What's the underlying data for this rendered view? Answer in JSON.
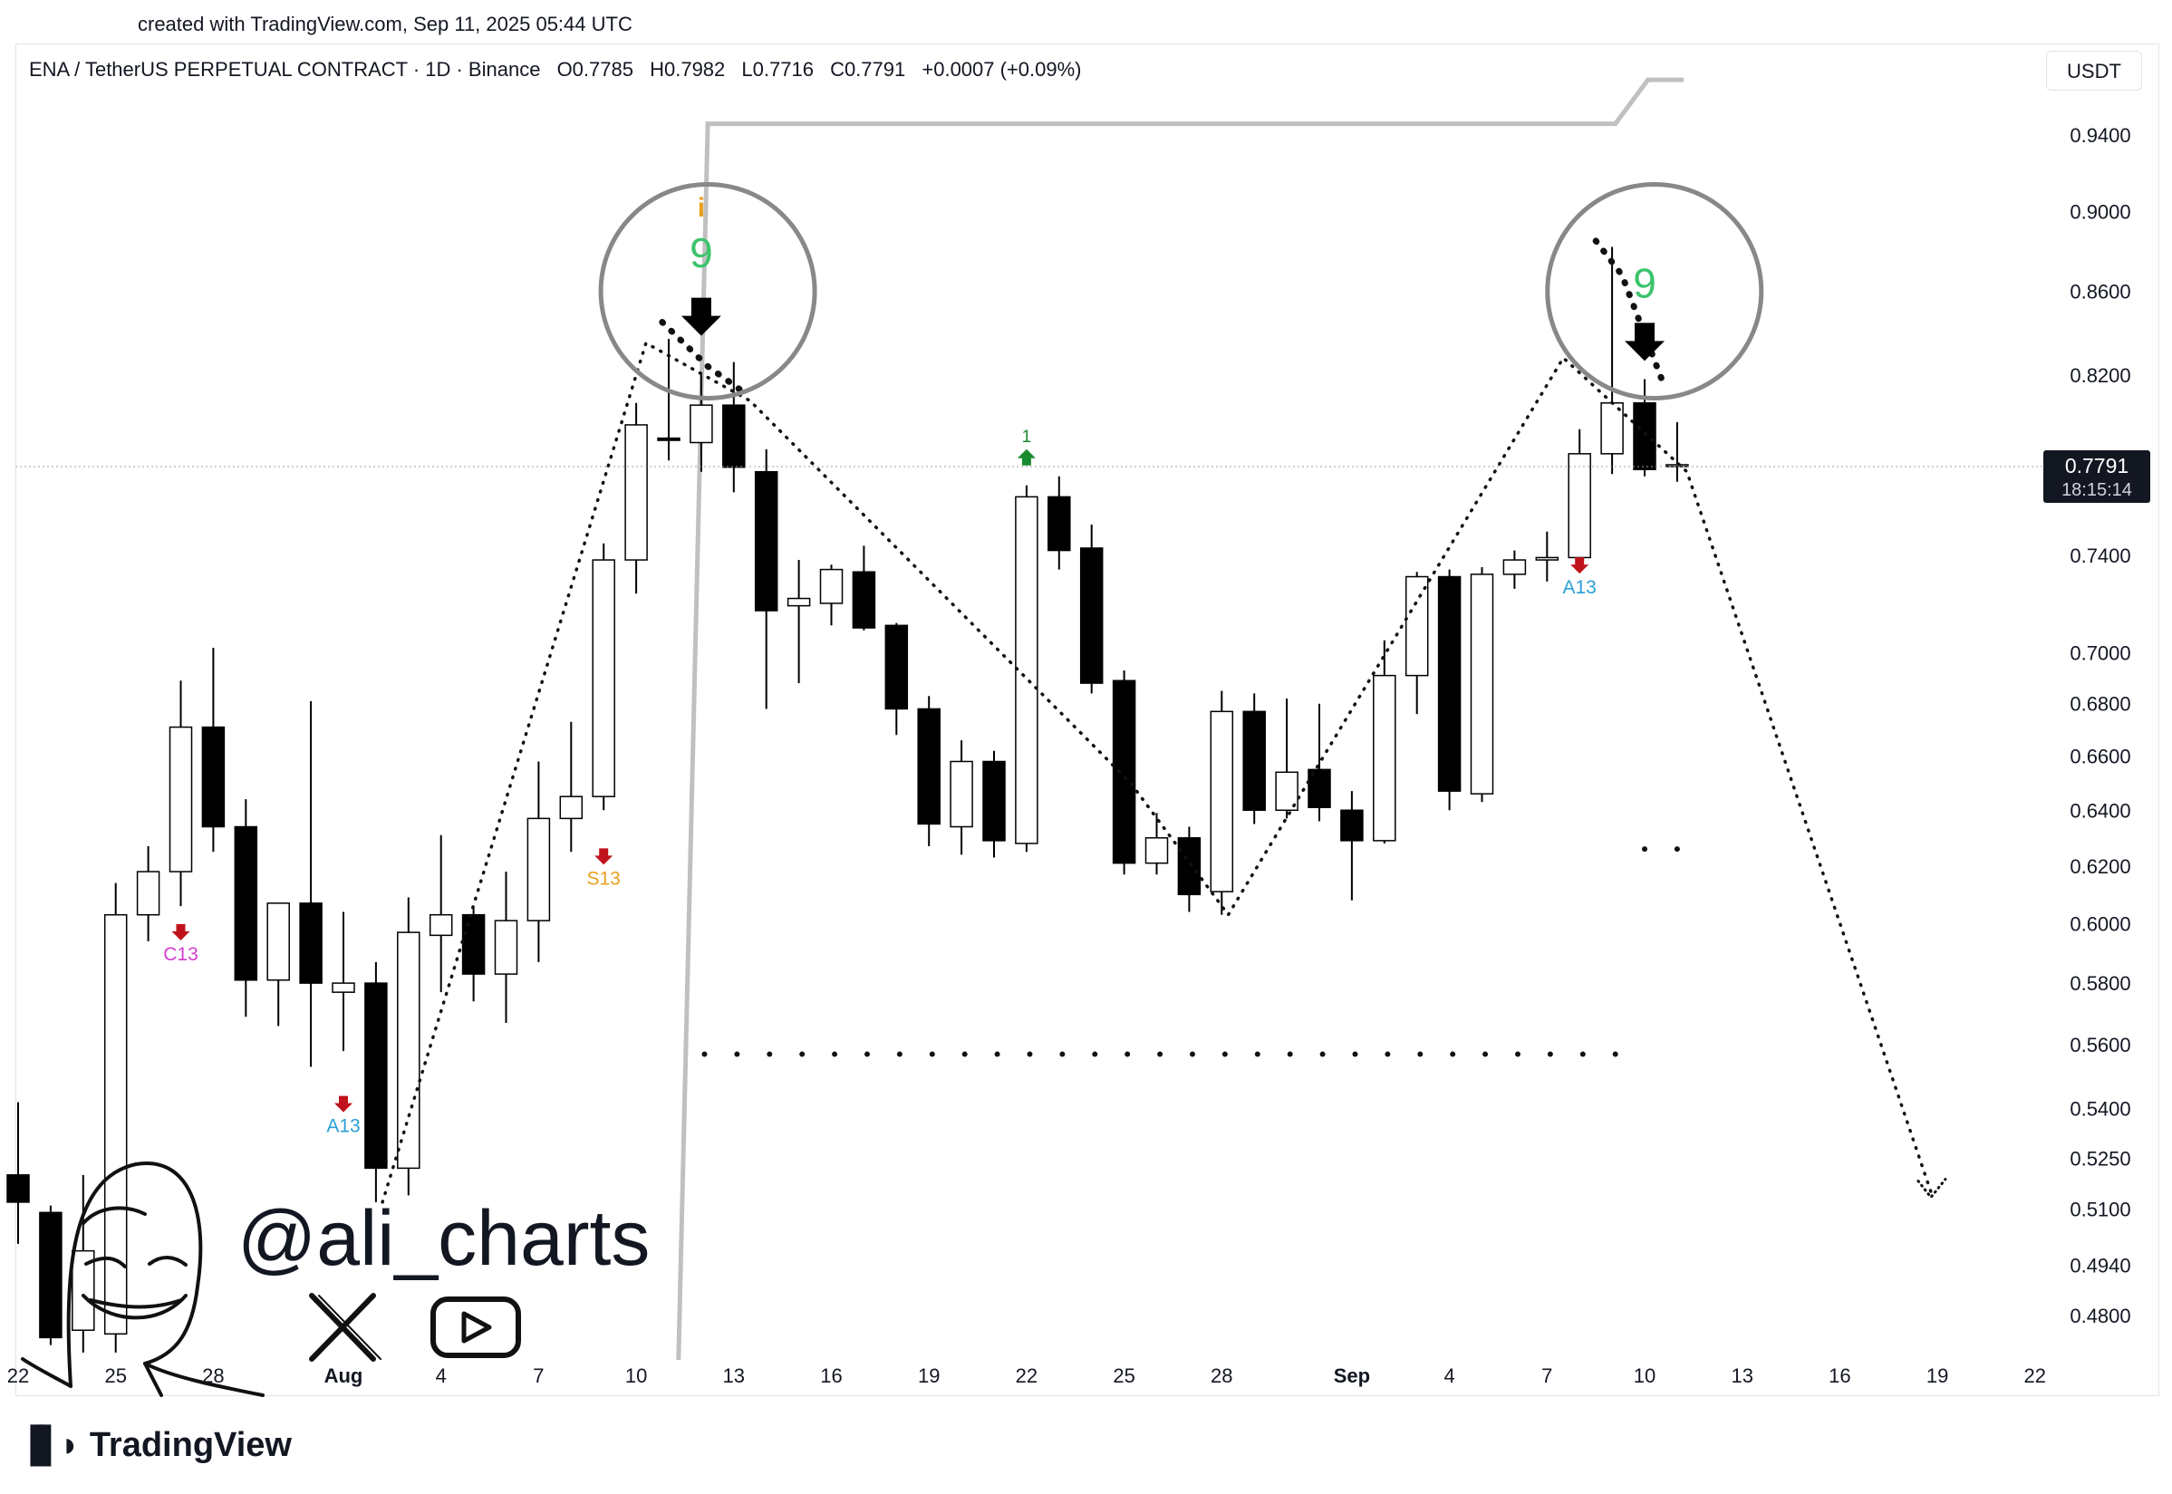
{
  "header": {
    "credit": "created with TradingView.com, Sep 11, 2025 05:44 UTC"
  },
  "legend": {
    "symbol": "ENA / TetherUS PERPETUAL CONTRACT · 1D · Binance",
    "open": "O0.7785",
    "high": "H0.7982",
    "low": "L0.7716",
    "close": "C0.7791",
    "change": "+0.0007 (+0.09%)"
  },
  "currency_label": "USDT",
  "price_tag": {
    "price": "0.7791",
    "countdown": "18:15:14",
    "value": 0.7791
  },
  "branding": {
    "handle": "@ali_charts",
    "footer": "TradingView"
  },
  "icons": {
    "x": "x-logo-icon",
    "youtube": "youtube-icon",
    "avatar": "avatar-sketch",
    "footer": "tradingview-logo-icon"
  },
  "colors": {
    "up_fill": "#ffffff",
    "down_fill": "#000000",
    "candle_border": "#000000",
    "td9": "#3cc36b",
    "td_arrow_down": "#c0121b",
    "td_arrow_up": "#1a8a2e",
    "a13": "#2a9fd6",
    "s13": "#e8a020",
    "c13": "#d13fd1",
    "projection_line": "#c0c0c0"
  },
  "chart_data": {
    "type": "candlestick",
    "title": "ENA / TetherUS PERPETUAL CONTRACT · 1D · Binance",
    "y_scale": "log",
    "ylim": [
      0.468,
      0.985
    ],
    "y_ticks": [
      "0.9400",
      "0.9000",
      "0.8600",
      "0.8200",
      "0.7400",
      "0.7000",
      "0.6800",
      "0.6600",
      "0.6400",
      "0.6200",
      "0.6000",
      "0.5800",
      "0.5600",
      "0.5400",
      "0.5250",
      "0.5100",
      "0.4940",
      "0.4800"
    ],
    "x_labels": [
      {
        "label": "22",
        "day": 0
      },
      {
        "label": "25",
        "day": 3
      },
      {
        "label": "28",
        "day": 6
      },
      {
        "label": "Aug",
        "day": 10
      },
      {
        "label": "4",
        "day": 13
      },
      {
        "label": "7",
        "day": 16
      },
      {
        "label": "10",
        "day": 19
      },
      {
        "label": "13",
        "day": 22
      },
      {
        "label": "16",
        "day": 25
      },
      {
        "label": "19",
        "day": 28
      },
      {
        "label": "22",
        "day": 31
      },
      {
        "label": "25",
        "day": 34
      },
      {
        "label": "28",
        "day": 37
      },
      {
        "label": "Sep",
        "day": 41
      },
      {
        "label": "4",
        "day": 44
      },
      {
        "label": "7",
        "day": 47
      },
      {
        "label": "10",
        "day": 50
      },
      {
        "label": "13",
        "day": 53
      },
      {
        "label": "16",
        "day": 56
      },
      {
        "label": "19",
        "day": 59
      },
      {
        "label": "22",
        "day": 62
      }
    ],
    "candles": [
      {
        "day": 0,
        "o": 0.52,
        "h": 0.542,
        "l": 0.5,
        "c": 0.512
      },
      {
        "day": 1,
        "o": 0.509,
        "h": 0.511,
        "l": 0.472,
        "c": 0.474
      },
      {
        "day": 2,
        "o": 0.476,
        "h": 0.52,
        "l": 0.47,
        "c": 0.498
      },
      {
        "day": 3,
        "o": 0.475,
        "h": 0.614,
        "l": 0.47,
        "c": 0.603
      },
      {
        "day": 4,
        "o": 0.603,
        "h": 0.627,
        "l": 0.594,
        "c": 0.618
      },
      {
        "day": 5,
        "o": 0.618,
        "h": 0.689,
        "l": 0.606,
        "c": 0.671
      },
      {
        "day": 6,
        "o": 0.671,
        "h": 0.702,
        "l": 0.625,
        "c": 0.634
      },
      {
        "day": 7,
        "o": 0.634,
        "h": 0.644,
        "l": 0.569,
        "c": 0.581
      },
      {
        "day": 8,
        "o": 0.581,
        "h": 0.606,
        "l": 0.566,
        "c": 0.607
      },
      {
        "day": 9,
        "o": 0.607,
        "h": 0.681,
        "l": 0.553,
        "c": 0.58
      },
      {
        "day": 10,
        "o": 0.577,
        "h": 0.604,
        "l": 0.558,
        "c": 0.58
      },
      {
        "day": 11,
        "o": 0.58,
        "h": 0.587,
        "l": 0.512,
        "c": 0.522
      },
      {
        "day": 12,
        "o": 0.522,
        "h": 0.609,
        "l": 0.514,
        "c": 0.597
      },
      {
        "day": 13,
        "o": 0.596,
        "h": 0.631,
        "l": 0.577,
        "c": 0.603
      },
      {
        "day": 14,
        "o": 0.603,
        "h": 0.606,
        "l": 0.574,
        "c": 0.583
      },
      {
        "day": 15,
        "o": 0.583,
        "h": 0.618,
        "l": 0.567,
        "c": 0.601
      },
      {
        "day": 16,
        "o": 0.601,
        "h": 0.658,
        "l": 0.587,
        "c": 0.637
      },
      {
        "day": 17,
        "o": 0.637,
        "h": 0.673,
        "l": 0.625,
        "c": 0.645
      },
      {
        "day": 18,
        "o": 0.645,
        "h": 0.745,
        "l": 0.64,
        "c": 0.738
      },
      {
        "day": 19,
        "o": 0.738,
        "h": 0.807,
        "l": 0.724,
        "c": 0.797
      },
      {
        "day": 20,
        "o": 0.791,
        "h": 0.837,
        "l": 0.781,
        "c": 0.79
      },
      {
        "day": 21,
        "o": 0.789,
        "h": 0.82,
        "l": 0.776,
        "c": 0.806
      },
      {
        "day": 22,
        "o": 0.806,
        "h": 0.826,
        "l": 0.767,
        "c": 0.778
      },
      {
        "day": 23,
        "o": 0.776,
        "h": 0.786,
        "l": 0.678,
        "c": 0.717
      },
      {
        "day": 24,
        "o": 0.719,
        "h": 0.738,
        "l": 0.688,
        "c": 0.722
      },
      {
        "day": 25,
        "o": 0.72,
        "h": 0.736,
        "l": 0.711,
        "c": 0.734
      },
      {
        "day": 26,
        "o": 0.733,
        "h": 0.744,
        "l": 0.709,
        "c": 0.71
      },
      {
        "day": 27,
        "o": 0.711,
        "h": 0.712,
        "l": 0.668,
        "c": 0.678
      },
      {
        "day": 28,
        "o": 0.678,
        "h": 0.683,
        "l": 0.627,
        "c": 0.635
      },
      {
        "day": 29,
        "o": 0.634,
        "h": 0.666,
        "l": 0.624,
        "c": 0.658
      },
      {
        "day": 30,
        "o": 0.658,
        "h": 0.662,
        "l": 0.623,
        "c": 0.629
      },
      {
        "day": 31,
        "o": 0.628,
        "h": 0.77,
        "l": 0.625,
        "c": 0.765
      },
      {
        "day": 32,
        "o": 0.765,
        "h": 0.774,
        "l": 0.734,
        "c": 0.742
      },
      {
        "day": 33,
        "o": 0.743,
        "h": 0.753,
        "l": 0.684,
        "c": 0.688
      },
      {
        "day": 34,
        "o": 0.689,
        "h": 0.693,
        "l": 0.617,
        "c": 0.621
      },
      {
        "day": 35,
        "o": 0.621,
        "h": 0.639,
        "l": 0.617,
        "c": 0.63
      },
      {
        "day": 36,
        "o": 0.63,
        "h": 0.634,
        "l": 0.604,
        "c": 0.61
      },
      {
        "day": 37,
        "o": 0.611,
        "h": 0.685,
        "l": 0.603,
        "c": 0.677
      },
      {
        "day": 38,
        "o": 0.677,
        "h": 0.684,
        "l": 0.635,
        "c": 0.64
      },
      {
        "day": 39,
        "o": 0.64,
        "h": 0.682,
        "l": 0.637,
        "c": 0.654
      },
      {
        "day": 40,
        "o": 0.655,
        "h": 0.68,
        "l": 0.636,
        "c": 0.641
      },
      {
        "day": 41,
        "o": 0.64,
        "h": 0.647,
        "l": 0.608,
        "c": 0.629
      },
      {
        "day": 42,
        "o": 0.629,
        "h": 0.705,
        "l": 0.628,
        "c": 0.691
      },
      {
        "day": 43,
        "o": 0.691,
        "h": 0.733,
        "l": 0.676,
        "c": 0.731
      },
      {
        "day": 44,
        "o": 0.731,
        "h": 0.734,
        "l": 0.64,
        "c": 0.647
      },
      {
        "day": 45,
        "o": 0.646,
        "h": 0.735,
        "l": 0.643,
        "c": 0.732
      },
      {
        "day": 46,
        "o": 0.732,
        "h": 0.742,
        "l": 0.726,
        "c": 0.738
      },
      {
        "day": 47,
        "o": 0.738,
        "h": 0.75,
        "l": 0.729,
        "c": 0.739
      },
      {
        "day": 48,
        "o": 0.739,
        "h": 0.795,
        "l": 0.737,
        "c": 0.784
      },
      {
        "day": 49,
        "o": 0.784,
        "h": 0.882,
        "l": 0.775,
        "c": 0.807
      },
      {
        "day": 50,
        "o": 0.807,
        "h": 0.818,
        "l": 0.774,
        "c": 0.777
      },
      {
        "day": 51,
        "o": 0.7785,
        "h": 0.7982,
        "l": 0.7716,
        "c": 0.7791
      }
    ],
    "annotations": [
      {
        "type": "td-count",
        "text": "9",
        "day": 21,
        "price": 0.879
      },
      {
        "type": "td-count",
        "text": "9",
        "day": 50,
        "price": 0.864
      },
      {
        "type": "setup-marker",
        "text": "i",
        "day": 21,
        "price": 0.902
      },
      {
        "type": "sell-arrow",
        "day": 21,
        "price": 0.848
      },
      {
        "type": "sell-arrow",
        "day": 50,
        "price": 0.836
      },
      {
        "type": "count-13",
        "text": "C13",
        "day": 5,
        "price": 0.59,
        "color": "#d13fd1"
      },
      {
        "type": "count-13",
        "text": "A13",
        "day": 10,
        "price": 0.535,
        "color": "#2a9fd6"
      },
      {
        "type": "count-13",
        "text": "S13",
        "day": 18,
        "price": 0.616,
        "color": "#e8a020"
      },
      {
        "type": "count-13",
        "text": "A13",
        "day": 48,
        "price": 0.727,
        "color": "#2a9fd6"
      },
      {
        "type": "buy-count",
        "text": "1",
        "day": 31,
        "price": 0.782
      }
    ],
    "pattern_line": [
      {
        "day": 11.2,
        "price": 0.512
      },
      {
        "day": 19.3,
        "price": 0.835
      },
      {
        "day": 22.5,
        "price": 0.808
      },
      {
        "day": 34.2,
        "price": 0.65
      },
      {
        "day": 37.2,
        "price": 0.603
      },
      {
        "day": 47.5,
        "price": 0.828
      },
      {
        "day": 51.3,
        "price": 0.776
      },
      {
        "day": 58.8,
        "price": 0.515
      }
    ],
    "tops_circles": [
      {
        "day": 21.2,
        "price": 0.86
      },
      {
        "day": 50.3,
        "price": 0.86
      }
    ],
    "support_dots": {
      "price": 0.557,
      "from_day": 21.1,
      "to_day": 49.1,
      "count": 29
    },
    "projection_line": [
      {
        "day": 20.3,
        "price": 0.468
      },
      {
        "day": 21.2,
        "price": 0.946
      },
      {
        "day": 49.1,
        "price": 0.946
      },
      {
        "day": 50.1,
        "price": 0.97
      },
      {
        "day": 51.2,
        "price": 0.97
      }
    ]
  }
}
